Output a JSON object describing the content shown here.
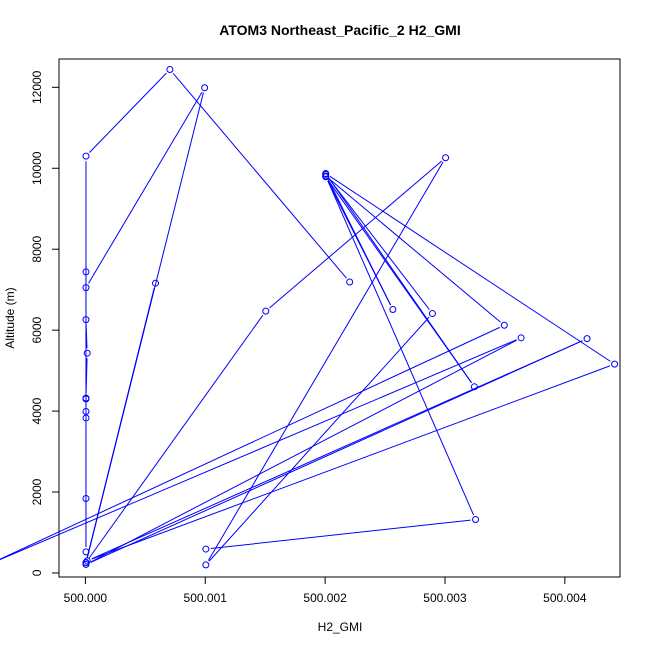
{
  "chart_data": {
    "type": "line",
    "title": "ATOM3 Northeast_Pacific_2 H2_GMI",
    "xlabel": "H2_GMI",
    "ylabel": "Altitude (m)",
    "xlim": [
      499.99978,
      500.00446
    ],
    "ylim": [
      -100,
      12700
    ],
    "x_ticks": [
      500.0,
      500.001,
      500.002,
      500.003,
      500.004
    ],
    "x_tick_labels": [
      "500.000",
      "500.001",
      "500.002",
      "500.003",
      "500.004"
    ],
    "y_ticks": [
      0,
      2000,
      4000,
      6000,
      8000,
      10000,
      12000
    ],
    "y_tick_labels": [
      "0",
      "2000",
      "4000",
      "6000",
      "8000",
      "10000",
      "12000"
    ],
    "grid": false,
    "color": "#0000ff",
    "series": [
      {
        "points": [
          [
            500.001005,
            590
          ],
          [
            500.003255,
            1320
          ],
          [
            500.002005,
            9810
          ],
          [
            500.003495,
            6120
          ],
          [
            499.999215,
            240
          ],
          [
            500.003635,
            5810
          ],
          [
            500.000005,
            210
          ],
          [
            500.004185,
            5790
          ],
          [
            500.000015,
            300
          ],
          [
            500.004415,
            5160
          ],
          [
            500.002005,
            9870
          ],
          [
            500.003245,
            4600
          ],
          [
            500.002005,
            9790
          ],
          [
            500.002565,
            6510
          ],
          [
            500.002005,
            9850
          ],
          [
            500.002895,
            6410
          ],
          [
            500.001005,
            200
          ],
          [
            500.003005,
            10260
          ],
          [
            500.001505,
            6470
          ],
          [
            500.000005,
            260
          ],
          [
            500.000585,
            7160
          ],
          [
            500.000005,
            250
          ],
          [
            500.000995,
            11990
          ],
          [
            500.000005,
            7050
          ],
          [
            500.000005,
            7440
          ],
          [
            500.000005,
            6260
          ],
          [
            500.000015,
            5430
          ],
          [
            500.000005,
            4320
          ],
          [
            500.000005,
            4300
          ],
          [
            500.000005,
            3990
          ],
          [
            500.000005,
            3830
          ],
          [
            500.000005,
            1840
          ],
          [
            500.000005,
            520
          ],
          [
            500.000005,
            10300
          ],
          [
            500.000705,
            12440
          ],
          [
            500.002205,
            7190
          ]
        ]
      }
    ]
  }
}
